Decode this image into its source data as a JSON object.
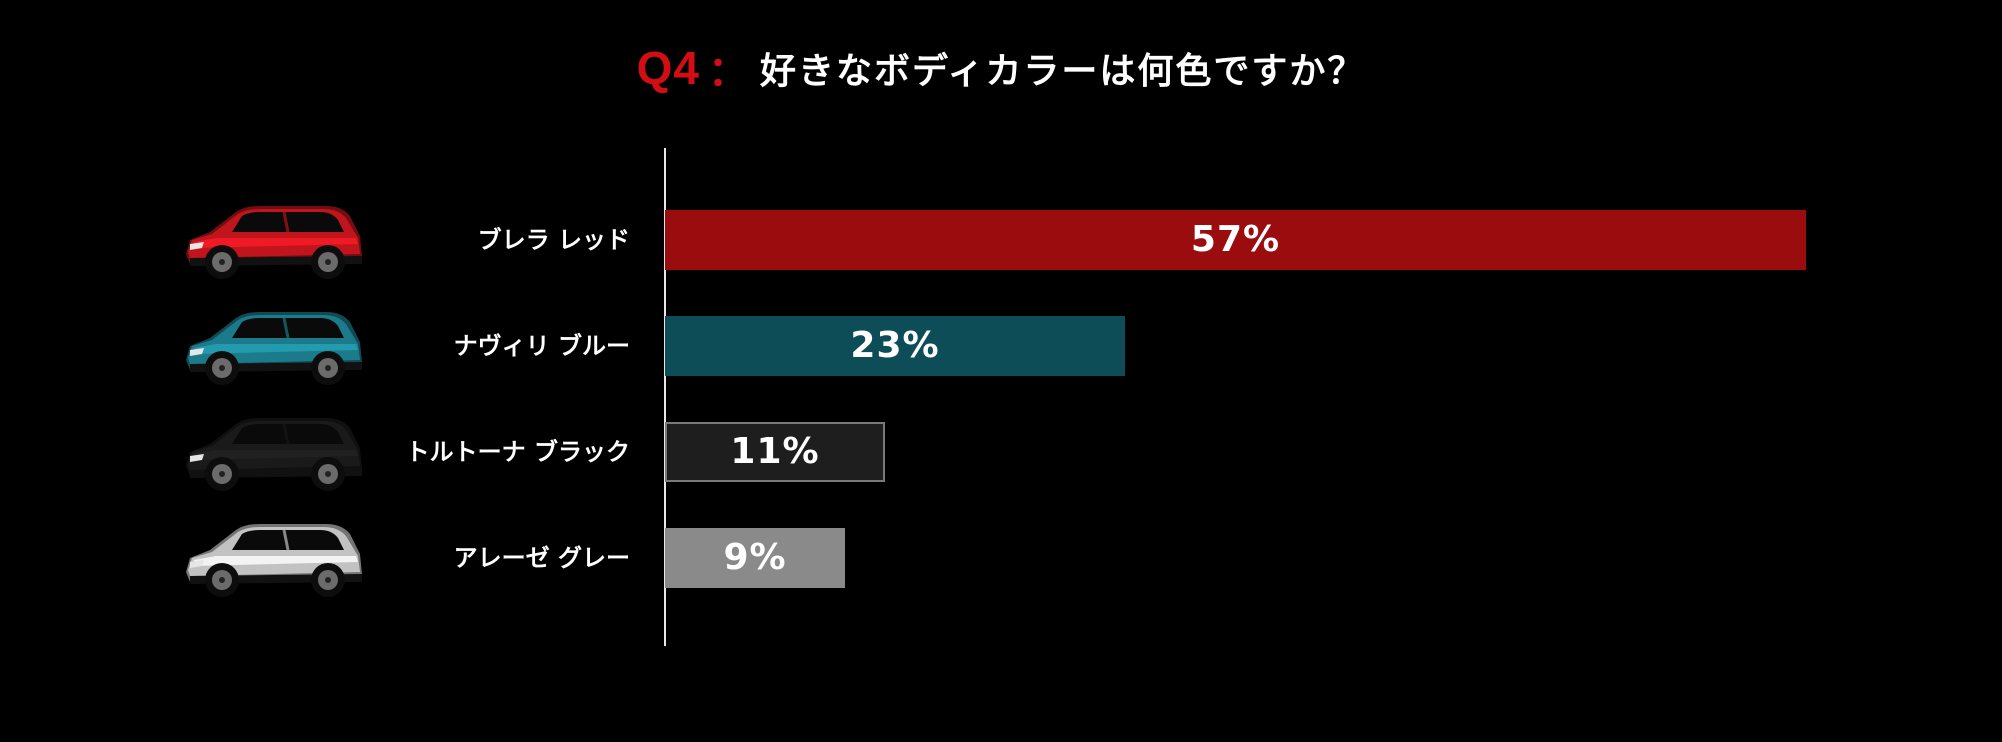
{
  "title": {
    "prefix": "Q4",
    "separator": "：",
    "question": "好きなボディカラーは何色ですか？"
  },
  "chart_data": {
    "type": "bar",
    "orientation": "horizontal",
    "categories": [
      "ブレラ レッド",
      "ナヴィリ ブルー",
      "トルトーナ ブラック",
      "アレーゼ グレー"
    ],
    "values": [
      57,
      23,
      11,
      9
    ],
    "value_labels": [
      "57%",
      "23%",
      "11%",
      "9%"
    ],
    "bar_colors": [
      "#9b0c0f",
      "#0d4d57",
      "#1e1e1e",
      "#8a8a8a"
    ],
    "bar_borders": [
      "none",
      "none",
      "#7a7a7a",
      "none"
    ],
    "car_colors": [
      "#c0151d",
      "#1c7b8a",
      "#1a1a1a",
      "#c2c2c2"
    ],
    "xlim": [
      0,
      100
    ],
    "grid": false,
    "legend": "none"
  }
}
